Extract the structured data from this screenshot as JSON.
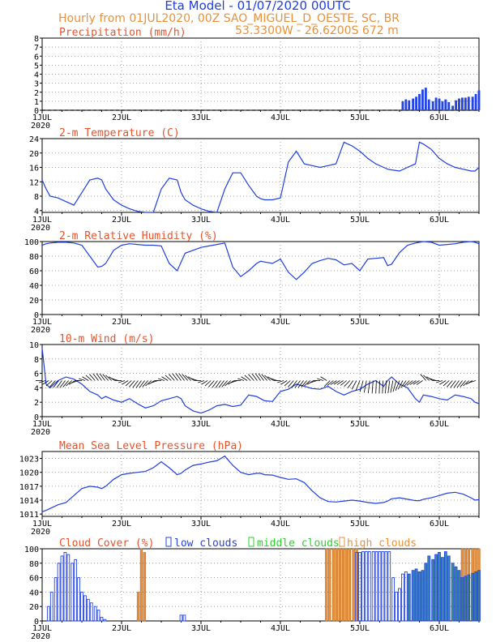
{
  "header": {
    "title": "Eta Model - 01/07/2020 00UTC",
    "line2": "Hourly from 01JUL2020, 00Z  SAO_MIGUEL_D_OESTE, SC, BR",
    "line3": "53.3300W - 26.6200S    672  m"
  },
  "colors": {
    "line": "#1f3fe0",
    "title": "#e8532a",
    "orange": "#e8913a",
    "green": "#2bd22b",
    "bar_blue": "#2344e6",
    "teal": "#1a7d8c"
  },
  "chart_data": [
    {
      "id": "precip",
      "type": "bar",
      "title": "Precipitation (mm/h)",
      "ylim": [
        0,
        8
      ],
      "yticks": [
        0,
        1,
        2,
        3,
        4,
        5,
        6,
        7,
        8
      ],
      "x": [
        4.54,
        4.58,
        4.62,
        4.67,
        4.71,
        4.75,
        4.79,
        4.83,
        4.87,
        4.92,
        4.96,
        5.0,
        5.04,
        5.08,
        5.12,
        5.17,
        5.21,
        5.25,
        5.29,
        5.33,
        5.37,
        5.42,
        5.46,
        5.5
      ],
      "values": [
        1.0,
        1.2,
        1.1,
        1.3,
        1.5,
        1.8,
        2.3,
        2.5,
        1.2,
        1.0,
        1.4,
        1.3,
        1.0,
        1.2,
        0.9,
        0.5,
        1.1,
        1.3,
        1.4,
        1.4,
        1.5,
        1.5,
        1.8,
        2.2
      ]
    },
    {
      "id": "temp",
      "type": "line",
      "title": "2-m Temperature (C)",
      "ylim": [
        3.5,
        24
      ],
      "yticks": [
        4,
        8,
        12,
        16,
        20,
        24
      ],
      "x": [
        0,
        0.05,
        0.1,
        0.2,
        0.3,
        0.4,
        0.5,
        0.6,
        0.7,
        0.75,
        0.8,
        0.9,
        1.0,
        1.1,
        1.2,
        1.3,
        1.4,
        1.5,
        1.6,
        1.7,
        1.75,
        1.8,
        1.9,
        2.0,
        2.1,
        2.2,
        2.3,
        2.4,
        2.5,
        2.6,
        2.7,
        2.75,
        2.8,
        2.9,
        3.0,
        3.1,
        3.2,
        3.3,
        3.4,
        3.5,
        3.6,
        3.7,
        3.8,
        3.9,
        4.0,
        4.1,
        4.2,
        4.3,
        4.35,
        4.4,
        4.5,
        4.6,
        4.7,
        4.75,
        4.8,
        4.9,
        5.0,
        5.1,
        5.2,
        5.3,
        5.4,
        5.45,
        5.5
      ],
      "values": [
        12.5,
        10,
        8,
        7.5,
        6.5,
        5.5,
        9,
        12.5,
        13,
        12.5,
        10,
        7,
        5.5,
        4.5,
        3.8,
        3.5,
        3.5,
        10,
        13,
        12.5,
        9,
        7,
        5.5,
        4.5,
        3.8,
        3.5,
        10,
        14.5,
        14.5,
        11,
        8,
        7.3,
        7,
        7,
        7.5,
        17.5,
        20.5,
        17,
        16.5,
        16,
        16.5,
        17,
        23,
        22,
        20.5,
        18.5,
        17,
        16,
        15.5,
        15.3,
        15,
        16,
        17,
        23,
        22.5,
        21,
        18.5,
        17,
        16,
        15.5,
        15,
        15,
        16
      ]
    },
    {
      "id": "rh",
      "type": "line",
      "title": "2-m Relative Humidity (%)",
      "ylim": [
        0,
        100
      ],
      "yticks": [
        0,
        20,
        40,
        60,
        80,
        100
      ],
      "x": [
        0,
        0.05,
        0.1,
        0.2,
        0.3,
        0.4,
        0.5,
        0.6,
        0.7,
        0.75,
        0.8,
        0.9,
        1.0,
        1.1,
        1.2,
        1.3,
        1.4,
        1.5,
        1.6,
        1.7,
        1.75,
        1.8,
        1.9,
        2.0,
        2.1,
        2.2,
        2.3,
        2.4,
        2.5,
        2.6,
        2.7,
        2.75,
        2.8,
        2.9,
        3.0,
        3.1,
        3.2,
        3.3,
        3.4,
        3.5,
        3.6,
        3.7,
        3.8,
        3.9,
        4.0,
        4.1,
        4.2,
        4.3,
        4.35,
        4.4,
        4.5,
        4.6,
        4.7,
        4.75,
        4.8,
        4.9,
        5.0,
        5.1,
        5.2,
        5.3,
        5.4,
        5.45,
        5.5
      ],
      "values": [
        95,
        97,
        98,
        99,
        99,
        98,
        95,
        80,
        65,
        66,
        70,
        88,
        95,
        97,
        96,
        95,
        95,
        94,
        70,
        60,
        72,
        84,
        88,
        92,
        94,
        96,
        98,
        65,
        52,
        60,
        70,
        73,
        72,
        70,
        76,
        58,
        48,
        58,
        70,
        74,
        77,
        75,
        68,
        70,
        60,
        76,
        77,
        78,
        67,
        69,
        85,
        95,
        98,
        99,
        100,
        99,
        95,
        96,
        97,
        99,
        100,
        99,
        97
      ]
    },
    {
      "id": "wind",
      "type": "line",
      "title": "10-m Wind (m/s)",
      "ylim": [
        0,
        10
      ],
      "yticks": [
        0,
        2,
        4,
        6,
        8,
        10
      ],
      "x": [
        0,
        0.05,
        0.1,
        0.2,
        0.3,
        0.4,
        0.5,
        0.6,
        0.7,
        0.75,
        0.8,
        0.9,
        1.0,
        1.1,
        1.2,
        1.3,
        1.4,
        1.5,
        1.6,
        1.7,
        1.75,
        1.8,
        1.9,
        2.0,
        2.1,
        2.2,
        2.3,
        2.4,
        2.5,
        2.6,
        2.7,
        2.75,
        2.8,
        2.9,
        3.0,
        3.1,
        3.2,
        3.3,
        3.4,
        3.5,
        3.6,
        3.7,
        3.8,
        3.9,
        4.0,
        4.1,
        4.2,
        4.3,
        4.35,
        4.4,
        4.5,
        4.6,
        4.7,
        4.75,
        4.8,
        4.9,
        5.0,
        5.1,
        5.2,
        5.3,
        5.4,
        5.45,
        5.5
      ],
      "values": [
        9.5,
        4.5,
        4,
        5,
        5.5,
        5.2,
        4.5,
        3.5,
        3,
        2.5,
        2.8,
        2.3,
        2,
        2.5,
        1.8,
        1.2,
        1.5,
        2.2,
        2.5,
        2.8,
        2.5,
        1.5,
        0.8,
        0.5,
        0.9,
        1.5,
        1.7,
        1.4,
        1.6,
        3,
        2.8,
        2.5,
        2.2,
        2.1,
        3.5,
        3.8,
        4.5,
        4.2,
        3.9,
        3.8,
        4.2,
        3.5,
        3.0,
        3.5,
        3.8,
        4.5,
        5,
        4.2,
        5,
        5.5,
        4.5,
        4,
        2.5,
        2,
        3,
        2.8,
        2.5,
        2.3,
        3,
        2.8,
        2.5,
        2,
        1.8
      ],
      "barbs_level": 5
    },
    {
      "id": "mslp",
      "type": "line",
      "title": "Mean Sea Level Pressure (hPa)",
      "ylim": [
        1010.5,
        1024.5
      ],
      "yticks": [
        1011,
        1014,
        1017,
        1020,
        1023
      ],
      "x": [
        0,
        0.05,
        0.1,
        0.2,
        0.3,
        0.4,
        0.5,
        0.6,
        0.7,
        0.75,
        0.8,
        0.9,
        1.0,
        1.1,
        1.2,
        1.3,
        1.4,
        1.5,
        1.6,
        1.7,
        1.75,
        1.8,
        1.9,
        2.0,
        2.1,
        2.2,
        2.3,
        2.4,
        2.5,
        2.6,
        2.7,
        2.75,
        2.8,
        2.9,
        3.0,
        3.1,
        3.2,
        3.3,
        3.4,
        3.5,
        3.6,
        3.7,
        3.8,
        3.9,
        4.0,
        4.1,
        4.2,
        4.3,
        4.35,
        4.4,
        4.5,
        4.6,
        4.7,
        4.75,
        4.8,
        4.9,
        5.0,
        5.1,
        5.2,
        5.3,
        5.4,
        5.45,
        5.5
      ],
      "values": [
        1011.5,
        1011.8,
        1012.2,
        1013,
        1013.5,
        1015,
        1016.5,
        1017,
        1016.8,
        1016.5,
        1017,
        1018.5,
        1019.5,
        1019.8,
        1020,
        1020.2,
        1021,
        1022.3,
        1021,
        1019.5,
        1019.8,
        1020.5,
        1021.5,
        1021.8,
        1022.2,
        1022.5,
        1023.5,
        1021.5,
        1020,
        1019.5,
        1019.8,
        1019.8,
        1019.5,
        1019.4,
        1018.9,
        1018.5,
        1018.6,
        1017.8,
        1016,
        1014.5,
        1013.7,
        1013.6,
        1013.8,
        1014,
        1013.8,
        1013.5,
        1013.3,
        1013.5,
        1013.8,
        1014.3,
        1014.5,
        1014.2,
        1013.9,
        1013.9,
        1014.2,
        1014.5,
        1015,
        1015.5,
        1015.7,
        1015.3,
        1014.5,
        1014,
        1014.1
      ]
    },
    {
      "id": "cloud",
      "type": "bar",
      "title": "Cloud Cover (%)",
      "ylim": [
        0,
        100
      ],
      "yticks": [
        0,
        20,
        40,
        60,
        80,
        100
      ],
      "legend": [
        "low clouds",
        "middle clouds",
        "high clouds"
      ],
      "low": {
        "x": [
          0.08,
          0.12,
          0.17,
          0.21,
          0.25,
          0.29,
          0.33,
          0.38,
          0.42,
          0.46,
          0.5,
          0.54,
          0.58,
          0.62,
          0.67,
          0.71,
          0.75,
          0.79,
          1.75,
          1.79,
          3.96,
          4.0,
          4.04,
          4.08,
          4.12,
          4.17,
          4.21,
          4.25,
          4.29,
          4.33,
          4.37,
          4.42,
          4.46,
          4.5,
          4.54,
          4.58,
          4.62,
          4.67,
          4.71,
          4.75,
          4.79,
          4.83,
          4.87,
          4.92,
          4.96,
          5.0,
          5.04,
          5.08,
          5.12,
          5.17,
          5.21,
          5.25,
          5.29,
          5.33,
          5.37,
          5.42,
          5.46,
          5.5
        ],
        "values": [
          20,
          40,
          60,
          80,
          90,
          95,
          92,
          80,
          85,
          60,
          40,
          35,
          30,
          25,
          20,
          15,
          5,
          2,
          8,
          8,
          95,
          95,
          96,
          96,
          96,
          96,
          96,
          96,
          96,
          96,
          96,
          60,
          40,
          45,
          65,
          68,
          65,
          70,
          72,
          68,
          70,
          80,
          90,
          85,
          92,
          95,
          88,
          96,
          90,
          80,
          75,
          70,
          60,
          62,
          64,
          66,
          68,
          70
        ]
      },
      "high": {
        "x": [
          1.21,
          1.25,
          1.29,
          3.58,
          3.62,
          3.67,
          3.71,
          3.75,
          3.79,
          3.83,
          3.87,
          3.92,
          3.96,
          5.29,
          5.33,
          5.37,
          5.42,
          5.46,
          5.5
        ],
        "values": [
          40,
          100,
          95,
          100,
          100,
          100,
          100,
          100,
          100,
          100,
          100,
          100,
          100,
          100,
          100,
          100,
          100,
          100,
          100
        ]
      }
    }
  ],
  "x_axis": {
    "ticks": [
      "1JUL",
      "2JUL",
      "3JUL",
      "4JUL",
      "5JUL",
      "6JUL"
    ],
    "year": "2020"
  }
}
